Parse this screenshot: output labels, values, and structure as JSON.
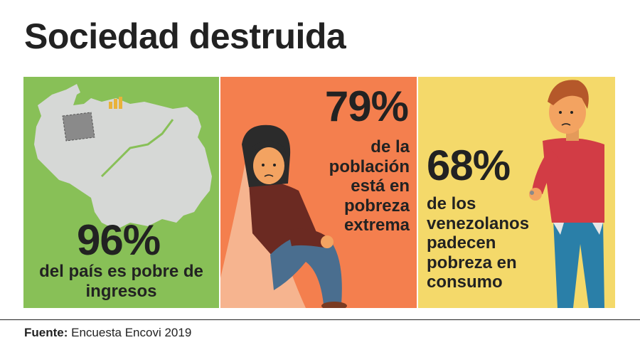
{
  "title": "Sociedad destruida",
  "panels": [
    {
      "value": "96%",
      "text": "del país es pobre de ingresos",
      "color": "#88c057"
    },
    {
      "value": "79%",
      "text": "de la población está en pobreza extrema",
      "color": "#f47f4e"
    },
    {
      "value": "68%",
      "text": "de los venezolanos padecen pobreza en consumo",
      "color": "#f4d96a"
    }
  ],
  "source": {
    "label": "Fuente:",
    "text": " Encuesta Encovi 2019"
  }
}
